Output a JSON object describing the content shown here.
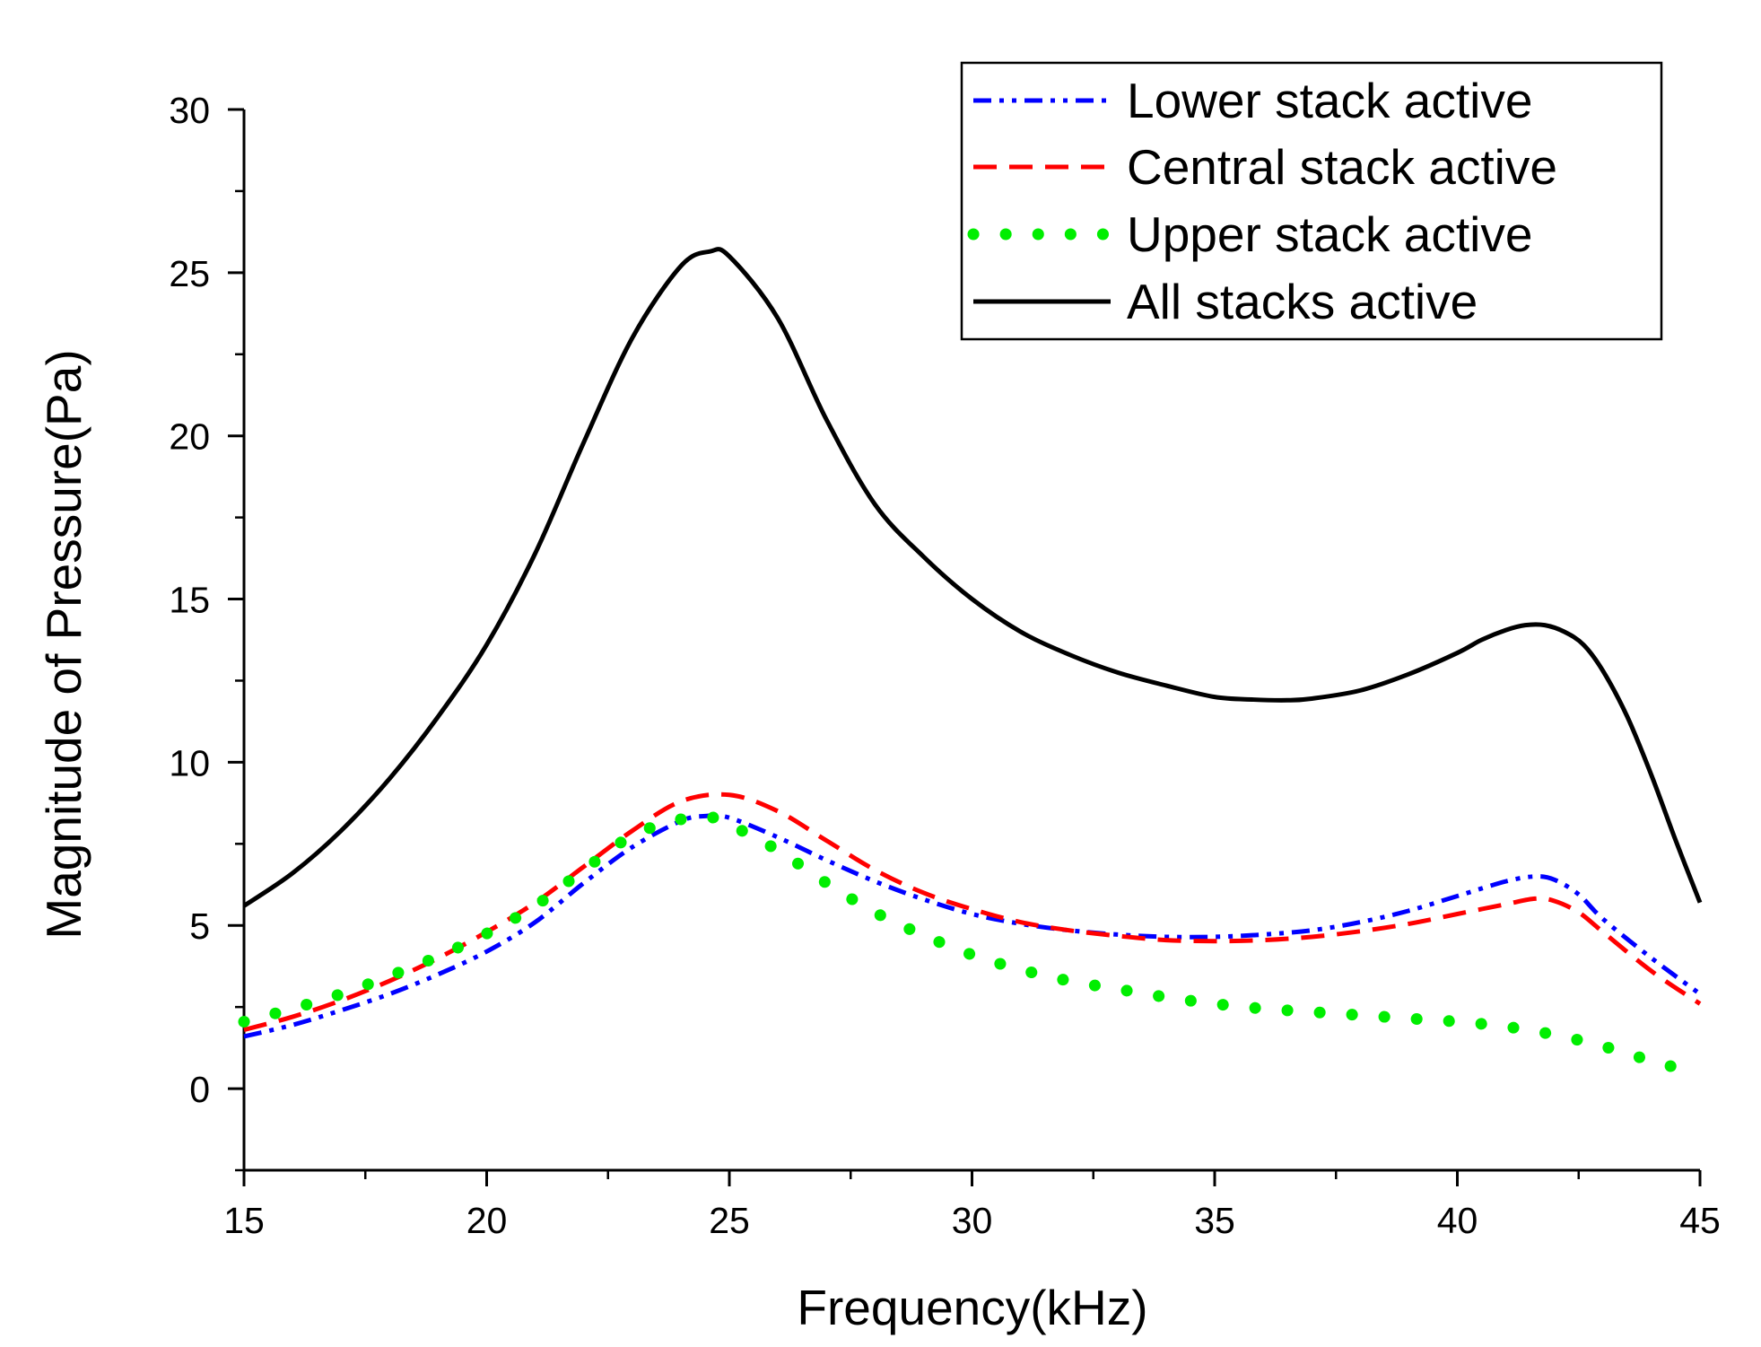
{
  "chart_data": {
    "type": "line",
    "title": "",
    "xlabel": "Frequency(kHz)",
    "ylabel": "Magnitude of Pressure(Pa)",
    "xlim": [
      15,
      45
    ],
    "ylim": [
      -2.5,
      30
    ],
    "x_ticks": [
      15,
      20,
      25,
      30,
      35,
      40,
      45
    ],
    "y_ticks": [
      0,
      5,
      10,
      15,
      20,
      25,
      30
    ],
    "x_tick_labels": [
      "15",
      "20",
      "25",
      "30",
      "35",
      "40",
      "45"
    ],
    "y_tick_labels": [
      "0",
      "5",
      "10",
      "15",
      "20",
      "25",
      "30"
    ],
    "grid": false,
    "legend_position": "top-right",
    "series": [
      {
        "name": "Lower stack active",
        "color": "#0000ff",
        "style": "dash-dot-dot",
        "x": [
          15,
          16,
          17,
          18,
          19,
          20,
          21,
          22,
          23,
          24,
          24.5,
          25,
          26,
          27,
          28,
          29,
          30,
          31,
          32,
          33,
          34,
          35,
          36,
          37,
          38,
          39,
          40,
          41,
          41.6,
          42,
          42.5,
          43,
          44,
          45
        ],
        "y": [
          1.6,
          1.95,
          2.4,
          2.9,
          3.5,
          4.2,
          5.1,
          6.3,
          7.4,
          8.2,
          8.35,
          8.3,
          7.7,
          7.0,
          6.35,
          5.8,
          5.35,
          5.05,
          4.85,
          4.72,
          4.65,
          4.65,
          4.72,
          4.85,
          5.1,
          5.45,
          5.9,
          6.35,
          6.5,
          6.4,
          5.95,
          5.2,
          4.0,
          2.9
        ]
      },
      {
        "name": "Central stack active",
        "color": "#ff0000",
        "style": "dashed",
        "x": [
          15,
          16,
          17,
          18,
          19,
          20,
          21,
          22,
          23,
          24,
          25,
          26,
          27,
          28,
          29,
          30,
          31,
          32,
          33,
          34,
          35,
          36,
          37,
          38,
          39,
          40,
          41,
          41.6,
          42,
          42.5,
          43,
          44,
          45
        ],
        "y": [
          1.8,
          2.2,
          2.7,
          3.3,
          4.0,
          4.8,
          5.7,
          6.8,
          7.9,
          8.8,
          9.0,
          8.5,
          7.6,
          6.7,
          6.0,
          5.5,
          5.1,
          4.85,
          4.68,
          4.55,
          4.52,
          4.55,
          4.65,
          4.82,
          5.05,
          5.35,
          5.65,
          5.82,
          5.75,
          5.4,
          4.8,
          3.6,
          2.6
        ]
      },
      {
        "name": "Upper stack active",
        "color": "#00ee00",
        "style": "dotted",
        "x": [
          15,
          16,
          17,
          18,
          19,
          20,
          21,
          22,
          23,
          24,
          24.7,
          25,
          26,
          27,
          28,
          29,
          30,
          31,
          32,
          33,
          34,
          35,
          36,
          37,
          38,
          39,
          40,
          41,
          42,
          43,
          44,
          45
        ],
        "y": [
          2.05,
          2.45,
          2.9,
          3.45,
          4.05,
          4.75,
          5.6,
          6.7,
          7.75,
          8.25,
          8.3,
          8.1,
          7.3,
          6.3,
          5.4,
          4.7,
          4.1,
          3.65,
          3.3,
          3.05,
          2.8,
          2.6,
          2.45,
          2.35,
          2.25,
          2.15,
          2.05,
          1.9,
          1.65,
          1.3,
          0.85,
          0.45
        ]
      },
      {
        "name": "All stacks active",
        "color": "#000000",
        "style": "solid",
        "x": [
          15,
          16,
          17,
          18,
          19,
          20,
          21,
          22,
          23,
          24,
          24.6,
          25,
          26,
          27,
          28,
          29,
          30,
          31,
          32,
          33,
          34,
          35,
          35.8,
          36.5,
          37,
          38,
          39,
          40,
          40.5,
          41,
          41.4,
          41.8,
          42.2,
          42.6,
          43,
          43.5,
          44,
          44.5,
          45
        ],
        "y": [
          5.6,
          6.6,
          7.9,
          9.5,
          11.4,
          13.6,
          16.4,
          19.8,
          23.0,
          25.2,
          25.65,
          25.5,
          23.6,
          20.5,
          17.9,
          16.3,
          15.0,
          14.0,
          13.3,
          12.75,
          12.35,
          12.0,
          11.92,
          11.9,
          11.95,
          12.2,
          12.7,
          13.35,
          13.75,
          14.05,
          14.2,
          14.2,
          14.0,
          13.6,
          12.8,
          11.4,
          9.6,
          7.6,
          5.7
        ]
      }
    ]
  }
}
